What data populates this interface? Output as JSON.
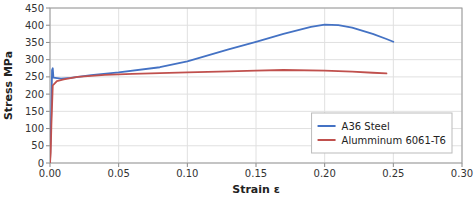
{
  "chart_data": {
    "type": "line",
    "xlabel": "Strain ε",
    "ylabel": "Stress MPa",
    "xlim": [
      0,
      0.3
    ],
    "ylim": [
      0,
      450
    ],
    "xticks": [
      {
        "value": 0,
        "label": "0.00"
      },
      {
        "value": 0.05,
        "label": "0.05"
      },
      {
        "value": 0.1,
        "label": "0.10"
      },
      {
        "value": 0.15,
        "label": "0.15"
      },
      {
        "value": 0.2,
        "label": "0.20"
      },
      {
        "value": 0.25,
        "label": "0.25"
      },
      {
        "value": 0.3,
        "label": "0.30"
      }
    ],
    "yticks": [
      0,
      50,
      100,
      150,
      200,
      250,
      300,
      350,
      400,
      450
    ],
    "grid": true,
    "legend": "lower right",
    "series": [
      {
        "name": "A36 Steel",
        "color": "#4472C4",
        "x": [
          0,
          0.001,
          0.0015,
          0.002,
          0.0025,
          0.008,
          0.015,
          0.03,
          0.05,
          0.08,
          0.1,
          0.13,
          0.15,
          0.17,
          0.19,
          0.2,
          0.21,
          0.22,
          0.235,
          0.245,
          0.25
        ],
        "values": [
          0,
          160,
          270,
          275,
          248,
          245,
          247,
          255,
          263,
          278,
          295,
          330,
          352,
          375,
          395,
          402,
          400,
          393,
          375,
          360,
          352
        ]
      },
      {
        "name": "Alumminum 6061-T6",
        "color": "#C0504D",
        "x": [
          0,
          0.0005,
          0.001,
          0.002,
          0.005,
          0.01,
          0.02,
          0.04,
          0.06,
          0.08,
          0.1,
          0.13,
          0.15,
          0.17,
          0.2,
          0.22,
          0.235,
          0.245
        ],
        "values": [
          0,
          30,
          110,
          225,
          238,
          243,
          250,
          256,
          259,
          261,
          263,
          266,
          268,
          270,
          268,
          265,
          262,
          260
        ]
      }
    ]
  }
}
